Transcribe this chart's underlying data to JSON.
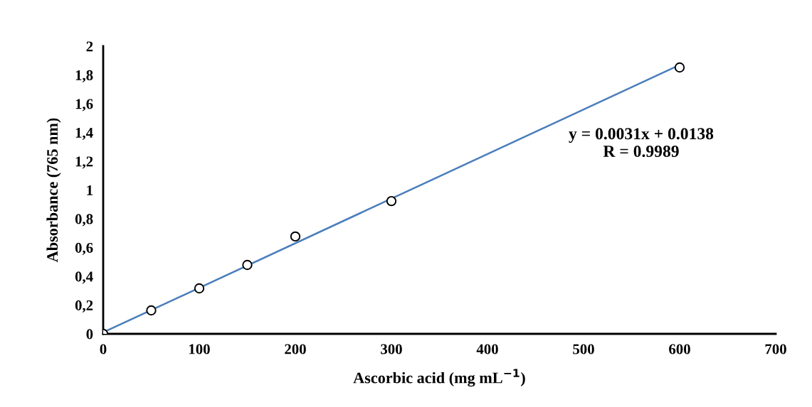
{
  "chart_data": {
    "type": "scatter",
    "xlabel": "Ascorbic acid (mg mL$^{−1}$)",
    "ylabel": "Absorbance (765 nm)",
    "x": [
      0,
      50,
      100,
      150,
      200,
      300,
      600
    ],
    "series": [
      {
        "color": "#000000",
        "marker": "circle",
        "values": [
          0,
          0.163,
          0.316,
          0.479,
          0.677,
          0.923,
          1.852
        ]
      },
      {
        "type": "line",
        "color": "#4a7ebb",
        "x": [
          0,
          600
        ],
        "values": [
          0.01,
          1.87
        ]
      }
    ],
    "annotations": [
      "y = 0.0031x + 0.0138\nR = 0.9989"
    ],
    "xlim": [
      0,
      700
    ],
    "xticks": [
      0,
      100,
      200,
      300,
      400,
      500,
      600,
      700
    ],
    "ylim": [
      0,
      2
    ],
    "yticks": [
      0,
      {
        "value": 0.2,
        "label": "0,2"
      },
      {
        "value": 0.4,
        "label": "0,4"
      },
      {
        "value": 0.6,
        "label": "0,6"
      },
      {
        "value": 0.8,
        "label": "0,8"
      },
      1,
      {
        "value": 1.2,
        "label": "1,2"
      },
      {
        "value": 1.4,
        "label": "1,4"
      },
      {
        "value": 1.6,
        "label": "1,6"
      },
      {
        "value": 1.8,
        "label": "1,8"
      },
      2
    ],
    "grid": false,
    "legend": false
  }
}
